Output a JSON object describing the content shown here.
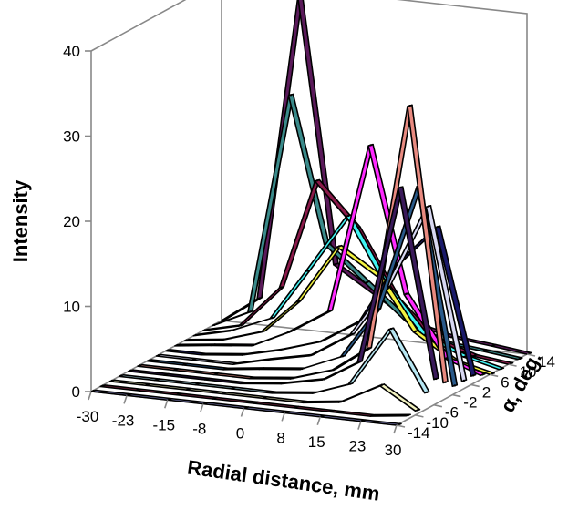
{
  "chart_data": {
    "type": "line",
    "subtype": "3d-ribbon",
    "title": "",
    "xlabel": "Radial distance, mm",
    "ylabel": "α, deg.",
    "zlabel": "Intensity",
    "x_ticks": [
      "-30",
      "-23",
      "-15",
      "-8",
      "0",
      "8",
      "15",
      "23",
      "30"
    ],
    "y_ticks": [
      "-14",
      "-10",
      "-6",
      "-2",
      "2",
      "6",
      "10",
      "14"
    ],
    "z_ticks": [
      "0",
      "10",
      "20",
      "30",
      "40"
    ],
    "xlim": [
      -30,
      30
    ],
    "ylim": [
      -14,
      14
    ],
    "zlim": [
      0,
      40
    ],
    "grid": false,
    "x": [
      -30,
      -23,
      -15,
      -8,
      0,
      8,
      15,
      23,
      30
    ],
    "series": [
      {
        "alpha": -14,
        "color": "#8f8fd0",
        "values": [
          0,
          0,
          0,
          0,
          0,
          0,
          0,
          0,
          0
        ]
      },
      {
        "alpha": -12,
        "color": "#8a2a4a",
        "values": [
          0,
          0,
          0,
          0,
          0,
          0,
          0,
          0,
          0.5
        ]
      },
      {
        "alpha": -10,
        "color": "#f2f2c0",
        "values": [
          0,
          0,
          0,
          0,
          0,
          0,
          0.5,
          3,
          0.5
        ]
      },
      {
        "alpha": -8,
        "color": "#b6e6f2",
        "values": [
          0,
          0,
          0,
          0,
          0,
          0.5,
          2,
          9,
          2
        ]
      },
      {
        "alpha": -6,
        "color": "#3a1a5a",
        "values": [
          0,
          0,
          0,
          0,
          0.5,
          1.5,
          4,
          25,
          3
        ]
      },
      {
        "alpha": -4,
        "color": "#e88a80",
        "values": [
          0,
          0,
          0,
          0,
          0.5,
          2,
          5,
          34,
          2
        ]
      },
      {
        "alpha": -2,
        "color": "#2a5a8a",
        "values": [
          0,
          0,
          0,
          0.5,
          1,
          3,
          9,
          24,
          1
        ]
      },
      {
        "alpha": 0,
        "color": "#d8d8f2",
        "values": [
          0,
          0,
          0,
          1,
          2,
          5,
          11,
          21,
          1
        ]
      },
      {
        "alpha": 2,
        "color": "#1a1a6a",
        "values": [
          0,
          0,
          0.5,
          1.5,
          3,
          6,
          13,
          18,
          1
        ]
      },
      {
        "alpha": 4,
        "color": "#ff2aff",
        "values": [
          0,
          0.5,
          1,
          3,
          6,
          26,
          9,
          2,
          0.5
        ]
      },
      {
        "alpha": 6,
        "color": "#f2f240",
        "values": [
          0,
          0.5,
          2,
          6,
          13,
          10,
          4,
          1,
          0
        ]
      },
      {
        "alpha": 8,
        "color": "#40f2f2",
        "values": [
          0,
          1,
          3,
          9,
          16,
          8,
          3,
          1,
          0
        ]
      },
      {
        "alpha": 10,
        "color": "#8a1a4a",
        "values": [
          0,
          1,
          6,
          19,
          14,
          6,
          2,
          0.5,
          0
        ]
      },
      {
        "alpha": 12,
        "color": "#3a8a8a",
        "values": [
          0,
          2,
          28,
          11,
          7,
          3,
          1,
          0.5,
          0
        ]
      },
      {
        "alpha": 14,
        "color": "#5a1a5a",
        "values": [
          0,
          3,
          39,
          8,
          5,
          2,
          1,
          0.5,
          0
        ]
      }
    ]
  }
}
